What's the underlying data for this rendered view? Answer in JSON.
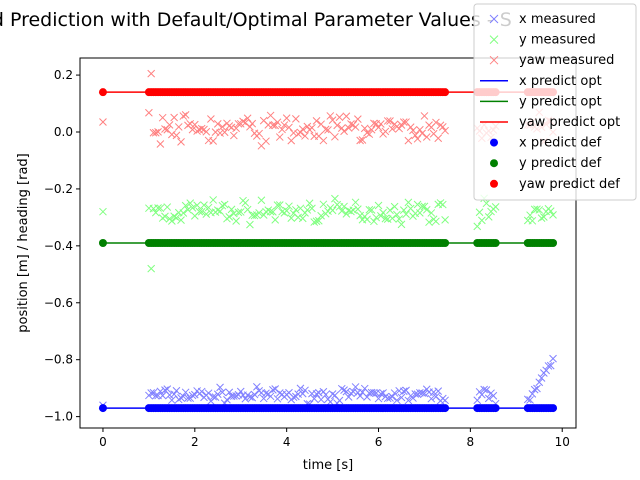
{
  "chart_data": {
    "type": "scatter",
    "title": "s and Prediction with Default/Optimal Parameter Values - S",
    "xlabel": "time [s]",
    "ylabel": "position [m] / heading [rad]",
    "xlim": [
      -0.5,
      10.3
    ],
    "ylim": [
      -1.04,
      0.26
    ],
    "xticks": [
      0,
      2,
      4,
      6,
      8,
      10
    ],
    "xtick_labels": [
      "0",
      "2",
      "4",
      "6",
      "8",
      "10"
    ],
    "yticks": [
      -1.0,
      -0.8,
      -0.6,
      -0.4,
      -0.2,
      0.0,
      0.2
    ],
    "ytick_labels": [
      "−1.0",
      "−0.8",
      "−0.6",
      "−0.4",
      "−0.2",
      "0.0",
      "0.2"
    ],
    "grid": false,
    "legend_position": "top-right",
    "time_segments": [
      [
        0,
        0
      ],
      [
        1.0,
        7.45
      ],
      [
        8.15,
        8.55
      ],
      [
        9.25,
        9.8
      ]
    ],
    "series": [
      {
        "name": "x measured",
        "kind": "measured",
        "color": "#8080ff",
        "marker": "x",
        "base": -0.925,
        "noise": 0.012,
        "edge_start": -0.96,
        "edge_end": -0.8,
        "rise_after": 9.35
      },
      {
        "name": "y measured",
        "kind": "measured",
        "color": "#80ff80",
        "marker": "x",
        "base": -0.28,
        "noise": 0.02,
        "edge_start": -0.28,
        "outlier": -0.48
      },
      {
        "name": "yaw measured",
        "kind": "measured",
        "color": "#ff8080",
        "marker": "x",
        "base": 0.01,
        "noise": 0.025,
        "edge_start": 0.035,
        "outlier": 0.205
      },
      {
        "name": "x predict opt",
        "kind": "line",
        "color": "#0000ff",
        "value": -0.97
      },
      {
        "name": "y predict opt",
        "kind": "line",
        "color": "#008000",
        "value": -0.39
      },
      {
        "name": "yaw predict opt",
        "kind": "line",
        "color": "#ff0000",
        "value": 0.14
      },
      {
        "name": "x predict def",
        "kind": "dots",
        "color": "#0000ff",
        "value": -0.97
      },
      {
        "name": "y predict def",
        "kind": "dots",
        "color": "#008000",
        "value": -0.39
      },
      {
        "name": "yaw predict def",
        "kind": "dots",
        "color": "#ff0000",
        "value": 0.14
      }
    ]
  }
}
